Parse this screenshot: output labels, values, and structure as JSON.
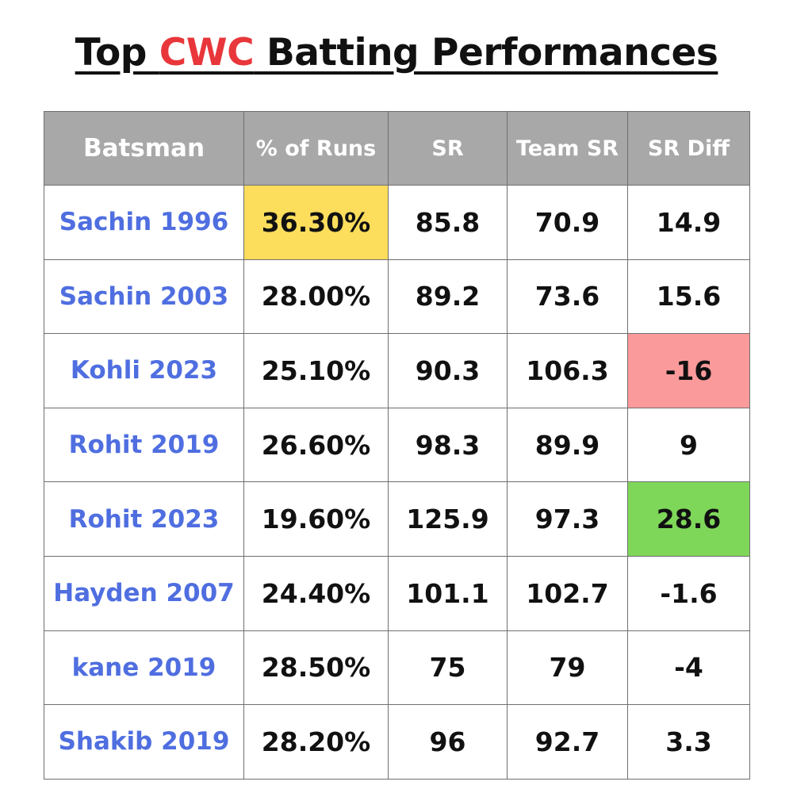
{
  "title": {
    "part1": "Top ",
    "part2": "CWC",
    "part3": " Batting Performances"
  },
  "colors": {
    "header_bg": "#a8a8a8",
    "name_text": "#4f6ee0",
    "title_accent": "#e8363a",
    "highlight_yellow": "#fddd5c",
    "highlight_red": "#fa9a9b",
    "highlight_green": "#7fd75a"
  },
  "chart_data": {
    "type": "table",
    "columns": [
      "Batsman",
      "% of Runs",
      "SR",
      "Team SR",
      "SR Diff"
    ],
    "rows": [
      {
        "batsman": "Sachin 1996",
        "pct_runs": "36.30%",
        "sr": "85.8",
        "team_sr": "70.9",
        "sr_diff": "14.9",
        "highlight": {
          "pct_runs": "#fddd5c"
        }
      },
      {
        "batsman": "Sachin 2003",
        "pct_runs": "28.00%",
        "sr": "89.2",
        "team_sr": "73.6",
        "sr_diff": "15.6",
        "highlight": {}
      },
      {
        "batsman": "Kohli 2023",
        "pct_runs": "25.10%",
        "sr": "90.3",
        "team_sr": "106.3",
        "sr_diff": "-16",
        "highlight": {
          "sr_diff": "#fa9a9b"
        }
      },
      {
        "batsman": "Rohit 2019",
        "pct_runs": "26.60%",
        "sr": "98.3",
        "team_sr": "89.9",
        "sr_diff": "9",
        "highlight": {}
      },
      {
        "batsman": "Rohit 2023",
        "pct_runs": "19.60%",
        "sr": "125.9",
        "team_sr": "97.3",
        "sr_diff": "28.6",
        "highlight": {
          "sr_diff": "#7fd75a"
        }
      },
      {
        "batsman": "Hayden 2007",
        "pct_runs": "24.40%",
        "sr": "101.1",
        "team_sr": "102.7",
        "sr_diff": "-1.6",
        "highlight": {}
      },
      {
        "batsman": "kane 2019",
        "pct_runs": "28.50%",
        "sr": "75",
        "team_sr": "79",
        "sr_diff": "-4",
        "highlight": {}
      },
      {
        "batsman": "Shakib 2019",
        "pct_runs": "28.20%",
        "sr": "96",
        "team_sr": "92.7",
        "sr_diff": "3.3",
        "highlight": {}
      }
    ]
  }
}
